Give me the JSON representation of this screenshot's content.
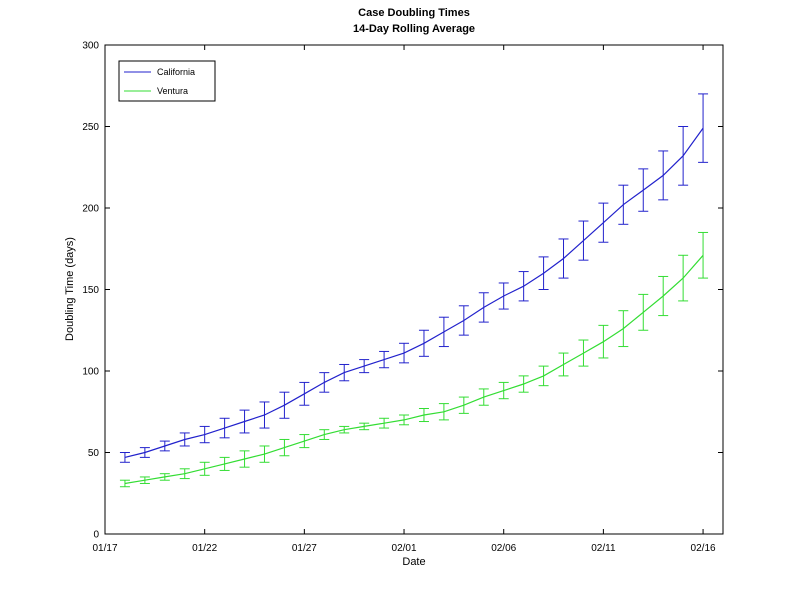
{
  "chart_data": {
    "type": "line",
    "title": "Case Doubling Times",
    "subtitle": "14-Day Rolling Average",
    "xlabel": "Date",
    "ylabel": "Doubling Time (days)",
    "ylim": [
      0,
      300
    ],
    "yticks": [
      0,
      50,
      100,
      150,
      200,
      250,
      300
    ],
    "xlim": [
      "01/17",
      "02/17"
    ],
    "xticks": [
      "01/17",
      "01/22",
      "01/27",
      "02/01",
      "02/06",
      "02/11",
      "02/16"
    ],
    "grid": false,
    "legend_position": "top-left",
    "x": [
      "01/18",
      "01/19",
      "01/20",
      "01/21",
      "01/22",
      "01/23",
      "01/24",
      "01/25",
      "01/26",
      "01/27",
      "01/28",
      "01/29",
      "01/30",
      "01/31",
      "02/01",
      "02/02",
      "02/03",
      "02/04",
      "02/05",
      "02/06",
      "02/07",
      "02/08",
      "02/09",
      "02/10",
      "02/11",
      "02/12",
      "02/13",
      "02/14",
      "02/15",
      "02/16"
    ],
    "series": [
      {
        "name": "California",
        "color": "#2222cc",
        "values": [
          47,
          50,
          54,
          58,
          61,
          65,
          69,
          73,
          79,
          86,
          93,
          99,
          103,
          107,
          111,
          117,
          124,
          131,
          139,
          146,
          152,
          160,
          169,
          180,
          191,
          202,
          211,
          220,
          232,
          249
        ],
        "error": [
          3,
          3,
          3,
          4,
          5,
          6,
          7,
          8,
          8,
          7,
          6,
          5,
          4,
          5,
          6,
          8,
          9,
          9,
          9,
          8,
          9,
          10,
          12,
          12,
          12,
          12,
          13,
          15,
          18,
          21
        ]
      },
      {
        "name": "Ventura",
        "color": "#33dd33",
        "values": [
          31,
          33,
          35,
          37,
          40,
          43,
          46,
          49,
          53,
          57,
          61,
          64,
          66,
          68,
          70,
          73,
          75,
          79,
          84,
          88,
          92,
          97,
          104,
          111,
          118,
          126,
          136,
          146,
          157,
          171
        ],
        "error": [
          2,
          2,
          2,
          3,
          4,
          4,
          5,
          5,
          5,
          4,
          3,
          2,
          2,
          3,
          3,
          4,
          5,
          5,
          5,
          5,
          5,
          6,
          7,
          8,
          10,
          11,
          11,
          12,
          14,
          14
        ]
      }
    ]
  }
}
